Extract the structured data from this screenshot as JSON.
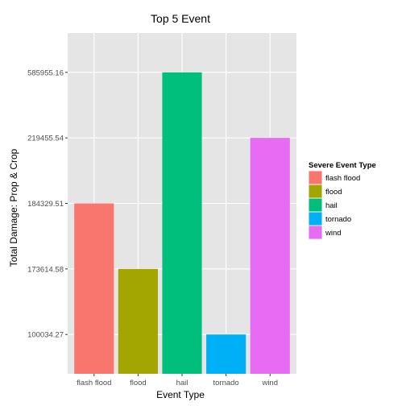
{
  "chart_data": {
    "type": "bar",
    "title": "Top 5 Event",
    "xlabel": "Event Type",
    "ylabel": "Total Damage: Prop & Crop",
    "categories": [
      "flash flood",
      "flood",
      "hail",
      "tornado",
      "wind"
    ],
    "values": [
      184329.51,
      173614.58,
      585955.16,
      100034.27,
      219455.54
    ],
    "y_ticks": [
      "100034.27",
      "173614.58",
      "184329.51",
      "219455.54",
      "585955.16"
    ],
    "y_axis_discrete": true,
    "colors": [
      "#F8766D",
      "#A3A500",
      "#00BF7D",
      "#00B0F6",
      "#E76BF3"
    ],
    "panel_background": "#E5E5E5",
    "grid": true,
    "grid_color": "#FFFFFF",
    "legend": {
      "title": "Severe Event Type",
      "position": "right",
      "entries": [
        "flash flood",
        "flood",
        "hail",
        "tornado",
        "wind"
      ]
    }
  }
}
